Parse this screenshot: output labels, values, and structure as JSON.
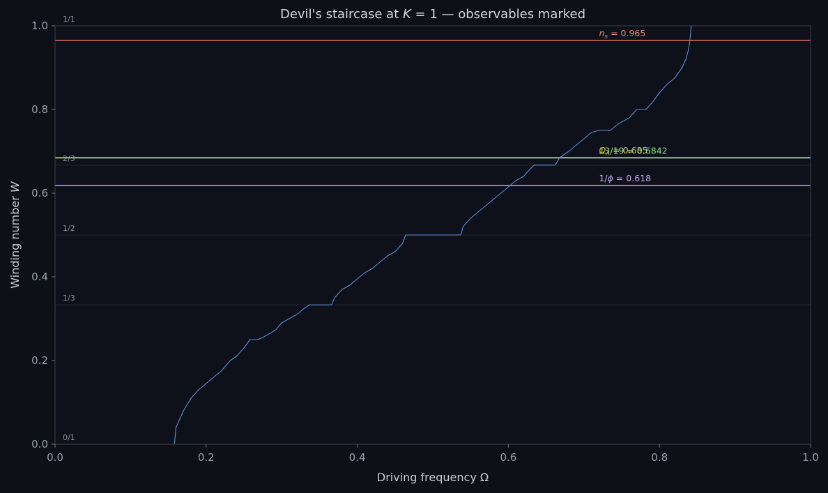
{
  "chart_data": {
    "type": "line",
    "title_parts": {
      "prefix": "Devil's staircase at ",
      "var": "K",
      "eq": " = 1 — observables marked"
    },
    "xlabel": "Driving frequency Ω",
    "ylabel_parts": {
      "text": "Winding number ",
      "var": "W"
    },
    "xlim": [
      0,
      1
    ],
    "ylim": [
      0,
      1
    ],
    "xticks": [
      "0.0",
      "0.2",
      "0.4",
      "0.6",
      "0.8",
      "1.0"
    ],
    "yticks": [
      "0.0",
      "0.2",
      "0.4",
      "0.6",
      "0.8",
      "1.0"
    ],
    "grid": false,
    "staircase": {
      "color": "#5b8fd6",
      "x": [
        0,
        0.158,
        0.16,
        0.17,
        0.18,
        0.19,
        0.2,
        0.21,
        0.22,
        0.232,
        0.24,
        0.25,
        0.258,
        0.268,
        0.275,
        0.292,
        0.3,
        0.31,
        0.32,
        0.33,
        0.337,
        0.366,
        0.37,
        0.38,
        0.39,
        0.4,
        0.41,
        0.42,
        0.43,
        0.44,
        0.45,
        0.46,
        0.464,
        0.537,
        0.54,
        0.55,
        0.56,
        0.57,
        0.58,
        0.59,
        0.6,
        0.61,
        0.62,
        0.63,
        0.634,
        0.662,
        0.668,
        0.68,
        0.69,
        0.7,
        0.71,
        0.72,
        0.735,
        0.745,
        0.76,
        0.77,
        0.782,
        0.792,
        0.8,
        0.81,
        0.82,
        0.83,
        0.835,
        0.838,
        0.84,
        0.842
      ],
      "y": [
        0,
        0,
        0.04,
        0.08,
        0.11,
        0.13,
        0.145,
        0.16,
        0.175,
        0.2,
        0.21,
        0.23,
        0.25,
        0.25,
        0.255,
        0.273,
        0.29,
        0.3,
        0.31,
        0.325,
        0.333,
        0.333,
        0.35,
        0.37,
        0.38,
        0.395,
        0.41,
        0.42,
        0.435,
        0.45,
        0.46,
        0.48,
        0.5,
        0.5,
        0.52,
        0.54,
        0.555,
        0.57,
        0.585,
        0.6,
        0.615,
        0.63,
        0.64,
        0.66,
        0.667,
        0.667,
        0.685,
        0.7,
        0.715,
        0.73,
        0.745,
        0.75,
        0.75,
        0.765,
        0.78,
        0.8,
        0.8,
        0.82,
        0.84,
        0.86,
        0.875,
        0.9,
        0.92,
        0.94,
        0.96,
        1.0
      ]
    },
    "fraction_lines": [
      {
        "label": "0/1",
        "y": 0
      },
      {
        "label": "1/3",
        "y": 0.3333
      },
      {
        "label": "1/2",
        "y": 0.5
      },
      {
        "label": "2/3",
        "y": 0.6667
      },
      {
        "label": "1/1",
        "y": 1
      }
    ],
    "observables": [
      {
        "label_base": "n",
        "label_sub": "s",
        "label_rest": " = 0.965",
        "y": 0.965,
        "color": "#e06c5a",
        "text_color": "#ec8a7c"
      },
      {
        "label_base": "Ω",
        "label_sub": "Λ",
        "label_rest": " = 0.685",
        "y": 0.685,
        "color": "#e3b341",
        "text_color": "#e3b341"
      },
      {
        "label_base": "13/19",
        "label_sub": "",
        "label_rest": " = 0.6842",
        "y": 0.6842,
        "color": "#8cc88a",
        "text_color": "#8fd88c"
      },
      {
        "label_base": "1/",
        "label_sub": "",
        "label_phi": "ϕ",
        "label_rest": " = 0.618",
        "y": 0.618,
        "color": "#b796e0",
        "text_color": "#c8a8f0"
      }
    ],
    "annotation_x": 0.72
  }
}
